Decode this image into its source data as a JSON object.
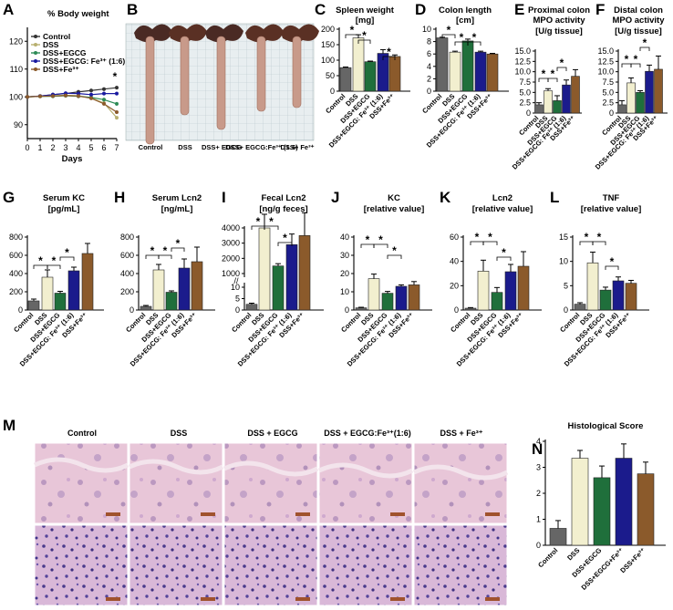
{
  "panel_letters": [
    "A",
    "B",
    "C",
    "D",
    "E",
    "F",
    "G",
    "H",
    "I",
    "J",
    "K",
    "L",
    "M",
    "N"
  ],
  "colors": {
    "control": "#666666",
    "dss": "#f2efcf",
    "egcg": "#1f6f3b",
    "egcg_fe": "#1b1b8c",
    "fe": "#8b5a2b",
    "line_control": "#333333",
    "line_dss": "#b8b070",
    "line_egcg": "#2e8b57",
    "line_egcg_fe": "#1a1aa0",
    "line_fe": "#8b5a2b"
  },
  "line_chart": {
    "title": "% Body weight",
    "xlabel": "Days",
    "xticks": [
      "0",
      "1",
      "2",
      "3",
      "4",
      "5",
      "6",
      "7"
    ],
    "yticks": [
      "90",
      "100",
      "110",
      "120"
    ],
    "legend": [
      "Control",
      "DSS",
      "DSS+EGCG",
      "DSS+EGCG: Fe³⁺ (1:6)",
      "DSS+Fe³⁺"
    ]
  },
  "chart_data": [
    {
      "type": "line",
      "panel": "A",
      "title": "% Body weight",
      "xlabel": "Days",
      "ylabel": "",
      "x": [
        0,
        1,
        2,
        3,
        4,
        5,
        6,
        7
      ],
      "ylim": [
        85,
        125
      ],
      "series": [
        {
          "name": "Control",
          "values": [
            100,
            100.3,
            100.8,
            101.2,
            101.8,
            102.3,
            102.8,
            103.3
          ]
        },
        {
          "name": "DSS",
          "values": [
            100,
            100.2,
            100.4,
            100.6,
            100.4,
            99.6,
            97.8,
            92.5
          ]
        },
        {
          "name": "DSS+EGCG",
          "values": [
            100,
            100.2,
            100.2,
            100.4,
            100.2,
            99.8,
            99,
            97.5
          ]
        },
        {
          "name": "DSS+EGCG: Fe³⁺ (1:6)",
          "values": [
            100,
            100.3,
            100.8,
            101.3,
            101.2,
            100.8,
            101.2,
            101.2
          ]
        },
        {
          "name": "DSS+Fe³⁺",
          "values": [
            100,
            100.2,
            100.3,
            100.5,
            100.3,
            99.5,
            97.5,
            94.5
          ]
        }
      ]
    },
    {
      "type": "bar",
      "panel": "C",
      "title": "Spleen weight",
      "unit": "[mg]",
      "yticks": [
        "0",
        "50",
        "100",
        "150",
        "200"
      ],
      "ylim": [
        0,
        200
      ],
      "values": [
        76,
        172,
        95,
        122,
        112
      ],
      "errors": [
        2,
        10,
        2,
        12,
        5
      ],
      "stars": [
        "*",
        "*",
        "*"
      ],
      "categories": [
        "Control",
        "DSS",
        "DSS+EGCG",
        "DSS+EGCG: Fe³⁺ (1:6)",
        "DSS+Fe³⁺"
      ]
    },
    {
      "type": "bar",
      "panel": "D",
      "title": "Colon length",
      "unit": "[cm]",
      "yticks": [
        "0",
        "2",
        "4",
        "6",
        "8",
        "10"
      ],
      "ylim": [
        0,
        10
      ],
      "values": [
        8.6,
        6.3,
        8.1,
        6.3,
        6.0
      ],
      "errors": [
        0.1,
        0.15,
        0.3,
        0.15,
        0.1
      ],
      "stars": [
        "*",
        "*",
        "*"
      ],
      "categories": [
        "Control",
        "DSS",
        "DSS+EGCG",
        "DSS+EGCG: Fe³⁺ (1:6)",
        "DSS+Fe³⁺"
      ]
    },
    {
      "type": "bar",
      "panel": "E",
      "title": "Proximal colon MPO activity",
      "unit": "[U/g tissue]",
      "yticks": [
        "0",
        "2.5",
        "5.0",
        "7.5",
        "10.0",
        "12.5",
        "15.0"
      ],
      "ylim": [
        0,
        15
      ],
      "values": [
        2.0,
        5.4,
        3.0,
        6.8,
        8.9
      ],
      "errors": [
        0.5,
        0.5,
        1.2,
        1.2,
        1.6
      ],
      "stars": [
        "*",
        "*",
        "*"
      ],
      "categories": [
        "Control",
        "DSS",
        "DSS+EGCG",
        "DSS+EGCG: Fe³⁺ (1:6)",
        "DSS+Fe³⁺"
      ]
    },
    {
      "type": "bar",
      "panel": "F",
      "title": "Distal colon MPO activity",
      "unit": "[U/g tissue]",
      "yticks": [
        "0",
        "2.5",
        "5.0",
        "7.5",
        "10.0",
        "12.5",
        "15.0"
      ],
      "ylim": [
        0,
        15
      ],
      "values": [
        2.0,
        7.3,
        5.0,
        10.1,
        10.6
      ],
      "errors": [
        1.0,
        1.2,
        0.4,
        1.5,
        3.2
      ],
      "stars": [
        "*",
        "*",
        "*"
      ],
      "categories": [
        "Control",
        "DSS",
        "DSS+EGCG",
        "DSS+EGCG: Fe³⁺ (1:6)",
        "DSS+Fe³⁺"
      ]
    },
    {
      "type": "bar",
      "panel": "G",
      "title": "Serum KC",
      "unit": "[pg/mL]",
      "yticks": [
        "0",
        "200",
        "400",
        "600",
        "800"
      ],
      "ylim": [
        0,
        800
      ],
      "values": [
        100,
        360,
        185,
        430,
        620
      ],
      "errors": [
        20,
        80,
        20,
        40,
        110
      ],
      "stars": [
        "*",
        "*",
        "*"
      ],
      "categories": [
        "Control",
        "DSS",
        "DSS+EGCG",
        "DSS+EGCG: Fe³⁺ (1:6)",
        "DSS+Fe³⁺"
      ]
    },
    {
      "type": "bar",
      "panel": "H",
      "title": "Serum Lcn2",
      "unit": "[ng/mL]",
      "yticks": [
        "0",
        "200",
        "400",
        "600",
        "800"
      ],
      "ylim": [
        0,
        800
      ],
      "values": [
        40,
        440,
        195,
        460,
        530
      ],
      "errors": [
        10,
        60,
        15,
        100,
        160
      ],
      "stars": [
        "*",
        "*",
        "*"
      ],
      "categories": [
        "Control",
        "DSS",
        "DSS+EGCG",
        "DSS+EGCG: Fe³⁺ (1:6)",
        "DSS+Fe³⁺"
      ]
    },
    {
      "type": "bar",
      "panel": "I",
      "title": "Fecal Lcn2",
      "unit": "[ng/g feces]",
      "yticks": [
        "0",
        "5",
        "10",
        "1000",
        "2000",
        "3000",
        "4000"
      ],
      "axis_break": true,
      "values": [
        2.5,
        4000,
        1500,
        2900,
        3500
      ],
      "errors": [
        0.5,
        900,
        150,
        700,
        1500
      ],
      "stars": [
        "*",
        "*",
        "*"
      ],
      "categories": [
        "Control",
        "DSS",
        "DSS+EGCG",
        "DSS+EGCG: Fe³⁺ (1:6)",
        "DSS+Fe³⁺"
      ]
    },
    {
      "type": "bar",
      "panel": "J",
      "title": "KC",
      "unit": "[relative value]",
      "yticks": [
        "0",
        "10",
        "20",
        "30",
        "40"
      ],
      "ylim": [
        0,
        40
      ],
      "values": [
        1.2,
        17.2,
        9.2,
        13.0,
        13.8
      ],
      "errors": [
        0.3,
        2.5,
        1.0,
        0.8,
        1.8
      ],
      "stars": [
        "*",
        "*",
        "*"
      ],
      "categories": [
        "Control",
        "DSS",
        "DSS+EGCG",
        "DSS+EGCG: Fe³⁺ (1:6)",
        "DSS+Fe³⁺"
      ]
    },
    {
      "type": "bar",
      "panel": "K",
      "title": "Lcn2",
      "unit": "[relative value]",
      "yticks": [
        "0",
        "20",
        "40",
        "60"
      ],
      "ylim": [
        0,
        60
      ],
      "values": [
        1.5,
        32,
        14.5,
        31.5,
        36
      ],
      "errors": [
        0.5,
        9,
        4,
        6,
        12
      ],
      "stars": [
        "*",
        "*",
        "*"
      ],
      "categories": [
        "Control",
        "DSS",
        "DSS+EGCG",
        "DSS+EGCG: Fe³⁺ (1:6)",
        "DSS+Fe³⁺"
      ]
    },
    {
      "type": "bar",
      "panel": "L",
      "title": "TNF",
      "unit": "[relative value]",
      "yticks": [
        "0",
        "5",
        "10",
        "15"
      ],
      "ylim": [
        0,
        15
      ],
      "values": [
        1.2,
        9.7,
        4.1,
        6.0,
        5.5
      ],
      "errors": [
        0.3,
        2.2,
        0.6,
        0.8,
        0.6
      ],
      "stars": [
        "*",
        "*",
        "*"
      ],
      "categories": [
        "Control",
        "DSS",
        "DSS+EGCG",
        "DSS+EGCG: Fe³⁺ (1:6)",
        "DSS+Fe³⁺"
      ]
    },
    {
      "type": "bar",
      "panel": "N",
      "title": "Histological Score",
      "unit": "",
      "yticks": [
        "0",
        "1",
        "2",
        "3",
        "4"
      ],
      "ylim": [
        0,
        4
      ],
      "values": [
        0.65,
        3.35,
        2.6,
        3.35,
        2.75
      ],
      "errors": [
        0.3,
        0.3,
        0.45,
        0.55,
        0.45
      ],
      "stars": [],
      "categories": [
        "Control",
        "DSS",
        "DSS+EGCG",
        "DSS+EGCG+Fe³⁺",
        "DSS+Fe³⁺"
      ]
    }
  ],
  "photo_b": {
    "labels": [
      "Control",
      "DSS",
      "DSS+ EGCG",
      "DSS+ EGCG:Fe³⁺ (1:6)",
      "DSS+ Fe³⁺"
    ]
  },
  "histology_m": {
    "labels": [
      "Control",
      "DSS",
      "DSS + EGCG",
      "DSS + EGCG:Fe³⁺(1:6)",
      "DSS + Fe³⁺"
    ]
  }
}
